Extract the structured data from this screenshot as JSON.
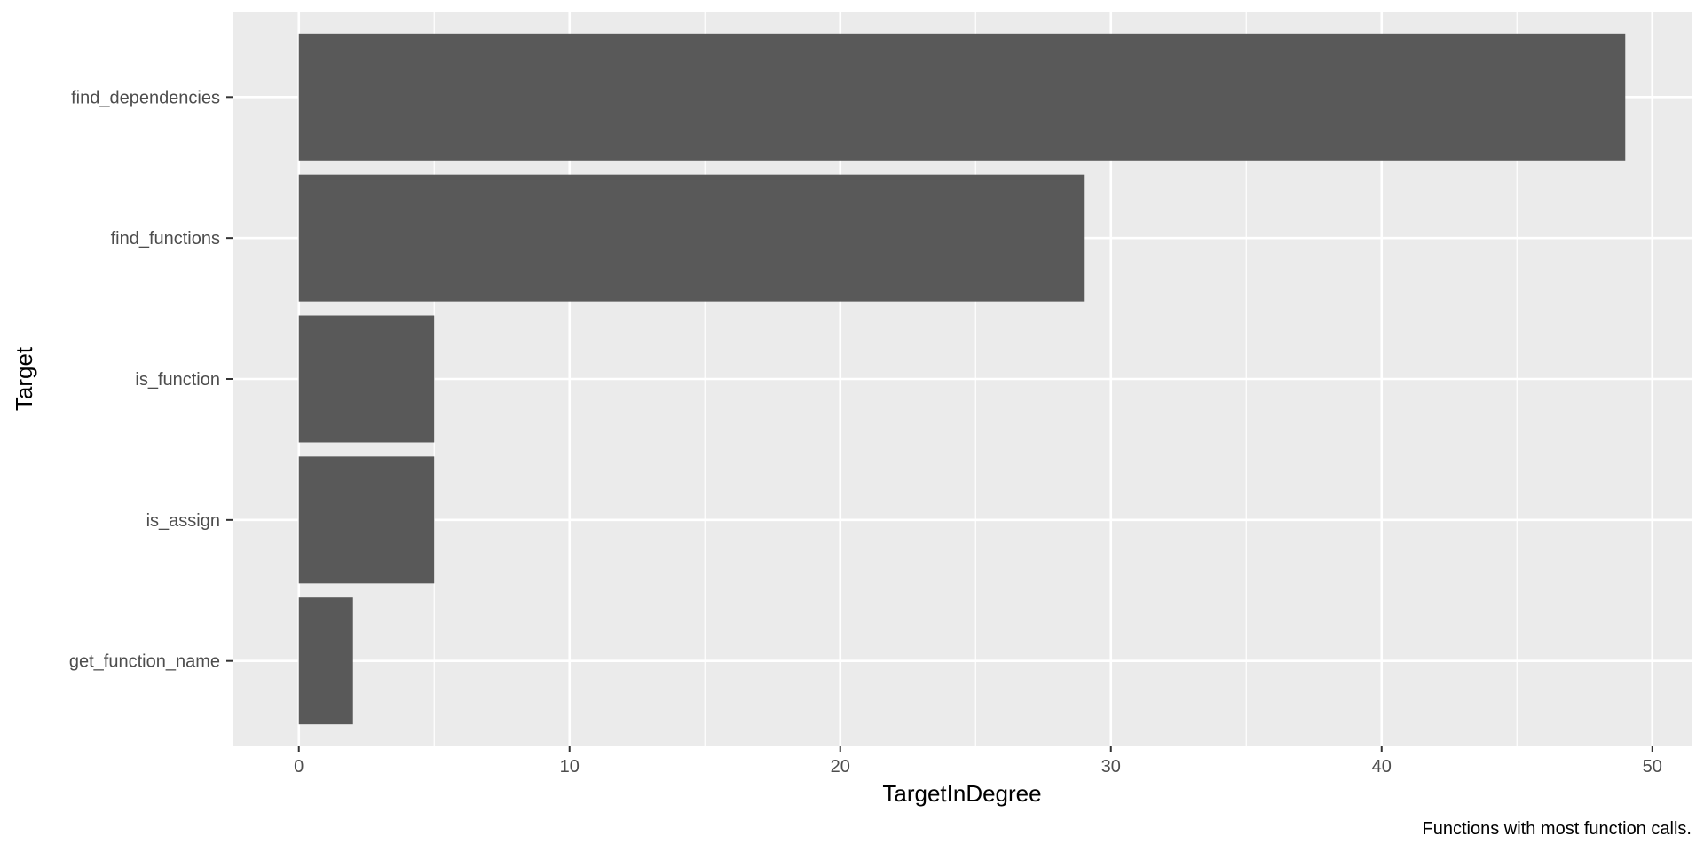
{
  "chart_data": {
    "type": "bar",
    "orientation": "horizontal",
    "categories": [
      "find_dependencies",
      "find_functions",
      "is_function",
      "is_assign",
      "get_function_name"
    ],
    "values": [
      49,
      29,
      5,
      5,
      2
    ],
    "xlabel": "TargetInDegree",
    "ylabel": "Target",
    "caption": "Functions with most function calls.",
    "xlim": [
      -2.45,
      51.45
    ],
    "xticks": [
      0,
      10,
      20,
      30,
      40,
      50
    ],
    "xtick_labels": [
      "0",
      "10",
      "20",
      "30",
      "40",
      "50"
    ],
    "grid": true,
    "legend": "none"
  },
  "colors": {
    "panel_background": "#ebebeb",
    "grid_major": "#ffffff",
    "bar_fill": "#595959",
    "tick_text": "#4d4d4d",
    "title_text": "#000000"
  }
}
